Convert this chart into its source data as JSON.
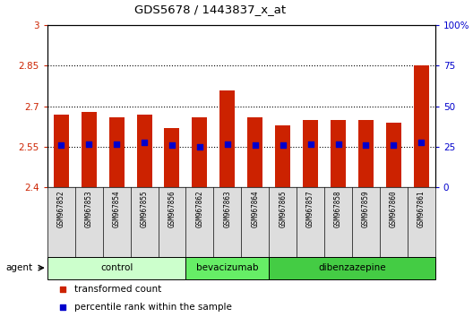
{
  "title": "GDS5678 / 1443837_x_at",
  "samples": [
    "GSM967852",
    "GSM967853",
    "GSM967854",
    "GSM967855",
    "GSM967856",
    "GSM967862",
    "GSM967863",
    "GSM967864",
    "GSM967865",
    "GSM967857",
    "GSM967858",
    "GSM967859",
    "GSM967860",
    "GSM967861"
  ],
  "bar_values": [
    2.67,
    2.68,
    2.66,
    2.67,
    2.62,
    2.66,
    2.76,
    2.66,
    2.63,
    2.65,
    2.65,
    2.65,
    2.64,
    2.85
  ],
  "blue_dot_values": [
    2.555,
    2.56,
    2.56,
    2.565,
    2.555,
    2.55,
    2.56,
    2.555,
    2.555,
    2.56,
    2.56,
    2.555,
    2.555,
    2.565
  ],
  "ylim_left": [
    2.4,
    3.0
  ],
  "ylim_right": [
    0,
    100
  ],
  "yticks_left": [
    2.4,
    2.55,
    2.7,
    2.85,
    3.0
  ],
  "ytick_labels_left": [
    "2.4",
    "2.55",
    "2.7",
    "2.85",
    "3"
  ],
  "yticks_right": [
    0,
    25,
    50,
    75,
    100
  ],
  "ytick_labels_right": [
    "0",
    "25",
    "50",
    "75",
    "100%"
  ],
  "groups": [
    {
      "label": "control",
      "start": 0,
      "end": 5,
      "color": "#ccffcc"
    },
    {
      "label": "bevacizumab",
      "start": 5,
      "end": 8,
      "color": "#66ee66"
    },
    {
      "label": "dibenzazepine",
      "start": 8,
      "end": 14,
      "color": "#44cc44"
    }
  ],
  "bar_color": "#cc2200",
  "dot_color": "#0000cc",
  "bar_width": 0.55,
  "left_tick_color": "#cc2200",
  "right_tick_color": "#0000cc",
  "agent_label": "agent",
  "legend_items": [
    {
      "label": "transformed count",
      "color": "#cc2200"
    },
    {
      "label": "percentile rank within the sample",
      "color": "#0000cc"
    }
  ]
}
